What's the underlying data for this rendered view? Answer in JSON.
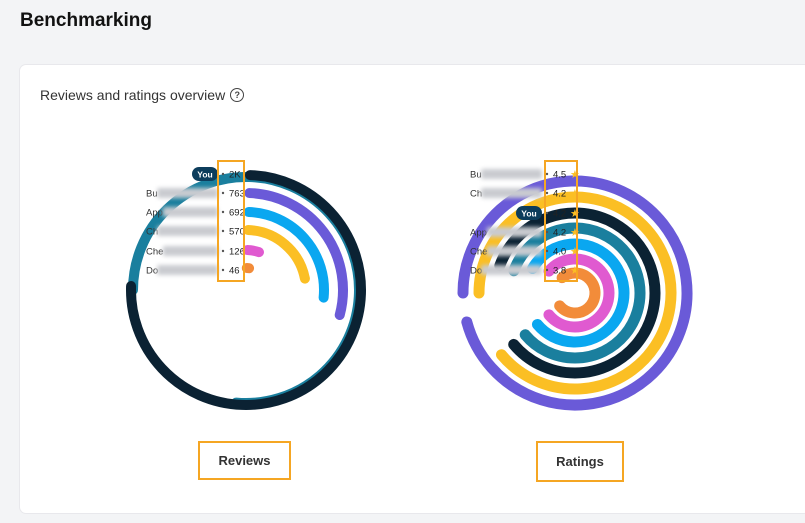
{
  "page_title": "Benchmarking",
  "card_title": "Reviews and ratings overview",
  "help_icon": "question-circle-icon",
  "reviews_chart": {
    "label": "Reviews",
    "items": [
      {
        "name": "You",
        "badge": true,
        "value": "2K",
        "color": "#0b2233",
        "fraction": 0.75
      },
      {
        "name": "Bu",
        "blurred": true,
        "value": "763",
        "color": "#6a5ad8",
        "fraction": 0.286
      },
      {
        "name": "App",
        "blurred": true,
        "value": "692",
        "color": "#0aa7f0",
        "fraction": 0.26
      },
      {
        "name": "Ch",
        "blurred": true,
        "value": "570",
        "color": "#fbbf24",
        "fraction": 0.214
      },
      {
        "name": "Che",
        "blurred": true,
        "value": "126",
        "color": "#e05ad0",
        "fraction": 0.047
      },
      {
        "name": "Do",
        "blurred": true,
        "value": "46",
        "color": "#f28c3a",
        "fraction": 0.017
      }
    ],
    "outer_ring_color": "#1a7f9e"
  },
  "ratings_chart": {
    "label": "Ratings",
    "star_color": "#fbbf24",
    "items": [
      {
        "name": "Bu",
        "blurred": true,
        "value": "4.5",
        "color": "#6a5ad8"
      },
      {
        "name": "Ch",
        "blurred": true,
        "value": "4.2",
        "color": "#fbbf24"
      },
      {
        "name": "You",
        "badge": true,
        "value": "4.2",
        "color": "#0b2233"
      },
      {
        "name": "App",
        "blurred": true,
        "value": "4.2",
        "color": "#0aa7f0"
      },
      {
        "name": "Che",
        "blurred": true,
        "value": "4.0",
        "color": "#e05ad0"
      },
      {
        "name": "Do",
        "blurred": true,
        "value": "3.8",
        "color": "#f28c3a"
      }
    ],
    "extra_ring_colors": [
      "#1a7f9e",
      "#fbbf24",
      "#6a5ad8"
    ]
  }
}
